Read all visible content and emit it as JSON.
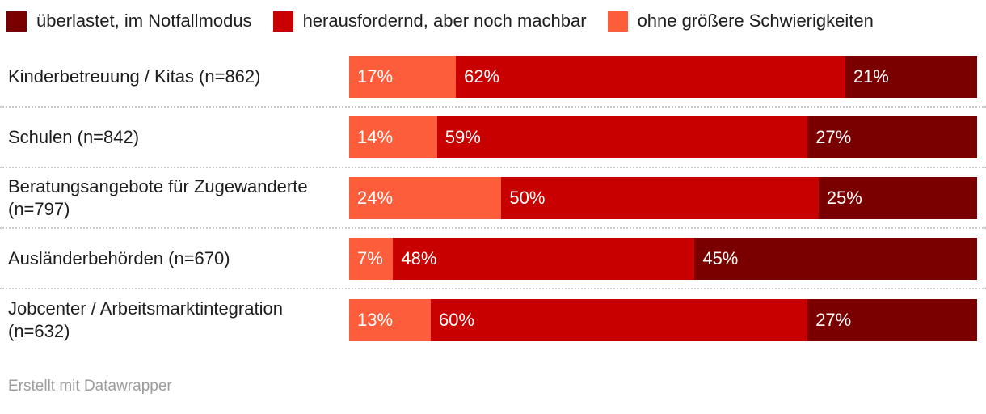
{
  "legend": {
    "items": [
      {
        "label": "überlastet, im Notfallmodus",
        "color": "#7a0000"
      },
      {
        "label": "herausfordernd, aber noch machbar",
        "color": "#c80000"
      },
      {
        "label": "ohne größere Schwierigkeiten",
        "color": "#fe5d3b"
      }
    ]
  },
  "chart_data": {
    "type": "bar",
    "stacked": true,
    "orientation": "horizontal",
    "value_suffix": "%",
    "xlim": [
      0,
      100
    ],
    "grid": false,
    "legend_position": "top",
    "categories": [
      "Kinderbetreuung / Kitas (n=862)",
      "Schulen (n=842)",
      "Beratungsangebote für Zugewanderte (n=797)",
      "Ausländerbehörden (n=670)",
      "Jobcenter / Arbeitsmarktintegration (n=632)"
    ],
    "series": [
      {
        "name": "ohne größere Schwierigkeiten",
        "color": "#fe5d3b",
        "values": [
          17,
          14,
          24,
          7,
          13
        ]
      },
      {
        "name": "herausfordernd, aber noch machbar",
        "color": "#c80000",
        "values": [
          62,
          59,
          50,
          48,
          60
        ]
      },
      {
        "name": "überlastet, im Notfallmodus",
        "color": "#7a0000",
        "values": [
          21,
          27,
          25,
          45,
          27
        ]
      }
    ]
  },
  "footer": {
    "attribution": "Erstellt mit Datawrapper"
  }
}
